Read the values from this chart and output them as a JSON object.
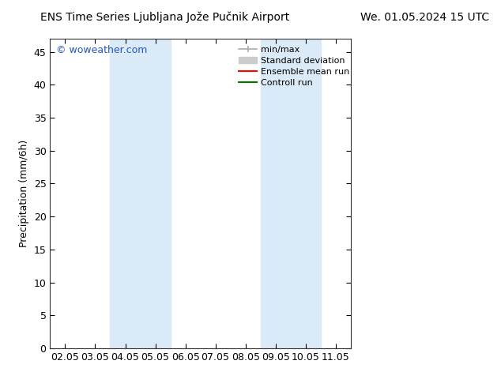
{
  "title_left": "ENS Time Series Ljubljana Jože Pučnik Airport",
  "title_right": "We. 01.05.2024 15 UTC",
  "ylabel": "Precipitation (mm/6h)",
  "ylim": [
    0,
    47
  ],
  "yticks": [
    0,
    5,
    10,
    15,
    20,
    25,
    30,
    35,
    40,
    45
  ],
  "xtick_labels": [
    "02.05",
    "03.05",
    "04.05",
    "05.05",
    "06.05",
    "07.05",
    "08.05",
    "09.05",
    "10.05",
    "11.05"
  ],
  "blue_bands": [
    {
      "xmin": 2,
      "xmax": 3
    },
    {
      "xmin": 3,
      "xmax": 4
    },
    {
      "xmin": 7,
      "xmax": 8
    },
    {
      "xmin": 8,
      "xmax": 9
    }
  ],
  "band_color": "#dbeaf7",
  "watermark": "© woweather.com",
  "watermark_color": "#2255cc",
  "legend_entries": [
    {
      "label": "min/max",
      "color": "#aaaaaa",
      "lw": 1.2,
      "type": "errorbar"
    },
    {
      "label": "Standard deviation",
      "color": "#cccccc",
      "lw": 6,
      "type": "bar"
    },
    {
      "label": "Ensemble mean run",
      "color": "#ff0000",
      "lw": 1.5,
      "type": "line"
    },
    {
      "label": "Controll run",
      "color": "#007700",
      "lw": 1.5,
      "type": "line"
    }
  ],
  "bg_color": "#ffffff",
  "title_fontsize": 10,
  "axis_label_fontsize": 9,
  "tick_fontsize": 9,
  "legend_fontsize": 8
}
